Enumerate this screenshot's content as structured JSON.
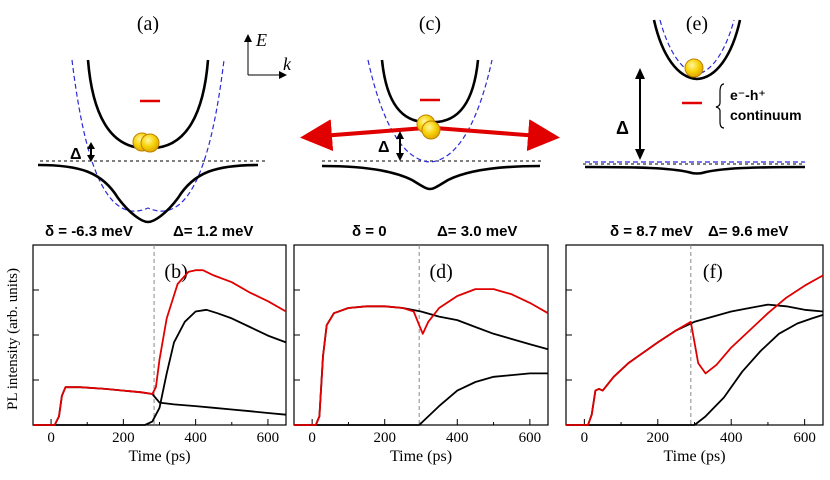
{
  "diagrams": [
    {
      "label": "(a)",
      "delta_symbol": "Δ"
    },
    {
      "label": "(c)",
      "delta_symbol": "Δ"
    },
    {
      "label": "(e)",
      "delta_symbol": "Δ",
      "continuum_line1": "e⁻-h⁺",
      "continuum_line2": "continuum"
    }
  ],
  "axes_key": {
    "e_label": "E",
    "k_label": "k"
  },
  "chart_data": [
    {
      "type": "line",
      "panel": "(b)",
      "header_left": "δ = -6.3 meV",
      "header_right": "Δ= 1.2 meV",
      "xlabel": "Time (ps)",
      "ylabel": "PL intensity (arb. units)",
      "xlim": [
        -50,
        650
      ],
      "ylim": [
        0,
        1
      ],
      "xticks": [
        0,
        200,
        400,
        600
      ],
      "marker_time": 285,
      "series": [
        {
          "name": "total",
          "color": "#e00000",
          "points": [
            [
              -50,
              0
            ],
            [
              10,
              0
            ],
            [
              22,
              0.05
            ],
            [
              30,
              0.17
            ],
            [
              40,
              0.22
            ],
            [
              80,
              0.22
            ],
            [
              150,
              0.21
            ],
            [
              200,
              0.2
            ],
            [
              250,
              0.19
            ],
            [
              280,
              0.18
            ],
            [
              290,
              0.22
            ],
            [
              300,
              0.38
            ],
            [
              320,
              0.62
            ],
            [
              350,
              0.82
            ],
            [
              380,
              0.89
            ],
            [
              400,
              0.9
            ],
            [
              420,
              0.9
            ],
            [
              450,
              0.87
            ],
            [
              500,
              0.83
            ],
            [
              550,
              0.77
            ],
            [
              600,
              0.72
            ],
            [
              650,
              0.66
            ]
          ]
        },
        {
          "name": "upper",
          "color": "#000000",
          "points": [
            [
              -50,
              0
            ],
            [
              260,
              0
            ],
            [
              280,
              0.02
            ],
            [
              300,
              0.1
            ],
            [
              320,
              0.3
            ],
            [
              340,
              0.48
            ],
            [
              370,
              0.6
            ],
            [
              400,
              0.66
            ],
            [
              430,
              0.67
            ],
            [
              460,
              0.65
            ],
            [
              500,
              0.62
            ],
            [
              550,
              0.57
            ],
            [
              600,
              0.52
            ],
            [
              650,
              0.48
            ]
          ]
        },
        {
          "name": "lower",
          "color": "#000000",
          "points": [
            [
              -50,
              0
            ],
            [
              10,
              0
            ],
            [
              22,
              0.05
            ],
            [
              30,
              0.17
            ],
            [
              40,
              0.22
            ],
            [
              80,
              0.22
            ],
            [
              150,
              0.21
            ],
            [
              200,
              0.2
            ],
            [
              250,
              0.19
            ],
            [
              280,
              0.18
            ],
            [
              300,
              0.13
            ],
            [
              340,
              0.12
            ],
            [
              400,
              0.11
            ],
            [
              450,
              0.1
            ],
            [
              500,
              0.09
            ],
            [
              550,
              0.08
            ],
            [
              600,
              0.07
            ],
            [
              650,
              0.06
            ]
          ]
        }
      ]
    },
    {
      "type": "line",
      "panel": "(d)",
      "header_left": "δ = 0",
      "header_right": "Δ= 3.0 meV",
      "xlabel": "Time (ps)",
      "xlim": [
        -50,
        650
      ],
      "ylim": [
        0,
        1
      ],
      "xticks": [
        0,
        200,
        400,
        600
      ],
      "marker_time": 295,
      "series": [
        {
          "name": "total",
          "color": "#e00000",
          "points": [
            [
              -50,
              0
            ],
            [
              10,
              0
            ],
            [
              20,
              0.05
            ],
            [
              30,
              0.4
            ],
            [
              40,
              0.58
            ],
            [
              60,
              0.65
            ],
            [
              100,
              0.68
            ],
            [
              150,
              0.69
            ],
            [
              200,
              0.69
            ],
            [
              250,
              0.68
            ],
            [
              280,
              0.66
            ],
            [
              295,
              0.58
            ],
            [
              305,
              0.53
            ],
            [
              320,
              0.6
            ],
            [
              350,
              0.68
            ],
            [
              400,
              0.75
            ],
            [
              450,
              0.79
            ],
            [
              500,
              0.79
            ],
            [
              550,
              0.76
            ],
            [
              600,
              0.71
            ],
            [
              650,
              0.65
            ]
          ]
        },
        {
          "name": "upper",
          "color": "#000000",
          "points": [
            [
              -50,
              0
            ],
            [
              10,
              0
            ],
            [
              20,
              0.05
            ],
            [
              30,
              0.4
            ],
            [
              40,
              0.58
            ],
            [
              60,
              0.65
            ],
            [
              100,
              0.68
            ],
            [
              150,
              0.69
            ],
            [
              200,
              0.69
            ],
            [
              250,
              0.68
            ],
            [
              300,
              0.66
            ],
            [
              350,
              0.63
            ],
            [
              400,
              0.61
            ],
            [
              450,
              0.57
            ],
            [
              500,
              0.53
            ],
            [
              550,
              0.5
            ],
            [
              600,
              0.47
            ],
            [
              650,
              0.44
            ]
          ]
        },
        {
          "name": "lower",
          "color": "#000000",
          "points": [
            [
              -50,
              0
            ],
            [
              295,
              0
            ],
            [
              320,
              0.05
            ],
            [
              350,
              0.11
            ],
            [
              400,
              0.2
            ],
            [
              450,
              0.25
            ],
            [
              500,
              0.28
            ],
            [
              550,
              0.29
            ],
            [
              600,
              0.3
            ],
            [
              650,
              0.3
            ]
          ]
        }
      ]
    },
    {
      "type": "line",
      "panel": "(f)",
      "header_left": "δ = 8.7 meV",
      "header_right": "Δ= 9.6 meV",
      "xlabel": "Time (ps)",
      "xlim": [
        -50,
        650
      ],
      "ylim": [
        0,
        1
      ],
      "xticks": [
        0,
        200,
        400,
        600
      ],
      "marker_time": 290,
      "series": [
        {
          "name": "total",
          "color": "#e00000",
          "points": [
            [
              -50,
              0
            ],
            [
              10,
              0
            ],
            [
              20,
              0.06
            ],
            [
              30,
              0.2
            ],
            [
              40,
              0.21
            ],
            [
              50,
              0.2
            ],
            [
              80,
              0.28
            ],
            [
              120,
              0.36
            ],
            [
              200,
              0.48
            ],
            [
              250,
              0.55
            ],
            [
              290,
              0.6
            ],
            [
              300,
              0.48
            ],
            [
              310,
              0.36
            ],
            [
              330,
              0.3
            ],
            [
              360,
              0.35
            ],
            [
              400,
              0.45
            ],
            [
              450,
              0.55
            ],
            [
              500,
              0.65
            ],
            [
              550,
              0.74
            ],
            [
              600,
              0.81
            ],
            [
              650,
              0.87
            ]
          ]
        },
        {
          "name": "upper",
          "color": "#000000",
          "points": [
            [
              -50,
              0
            ],
            [
              10,
              0
            ],
            [
              20,
              0.06
            ],
            [
              30,
              0.2
            ],
            [
              40,
              0.21
            ],
            [
              50,
              0.2
            ],
            [
              80,
              0.28
            ],
            [
              120,
              0.36
            ],
            [
              200,
              0.48
            ],
            [
              250,
              0.55
            ],
            [
              300,
              0.6
            ],
            [
              350,
              0.63
            ],
            [
              400,
              0.66
            ],
            [
              450,
              0.68
            ],
            [
              500,
              0.7
            ],
            [
              550,
              0.69
            ],
            [
              600,
              0.67
            ],
            [
              650,
              0.66
            ]
          ]
        },
        {
          "name": "lower",
          "color": "#000000",
          "points": [
            [
              -50,
              0
            ],
            [
              300,
              0
            ],
            [
              330,
              0.05
            ],
            [
              380,
              0.16
            ],
            [
              430,
              0.31
            ],
            [
              480,
              0.43
            ],
            [
              530,
              0.53
            ],
            [
              580,
              0.59
            ],
            [
              620,
              0.62
            ],
            [
              650,
              0.64
            ]
          ]
        }
      ]
    }
  ]
}
